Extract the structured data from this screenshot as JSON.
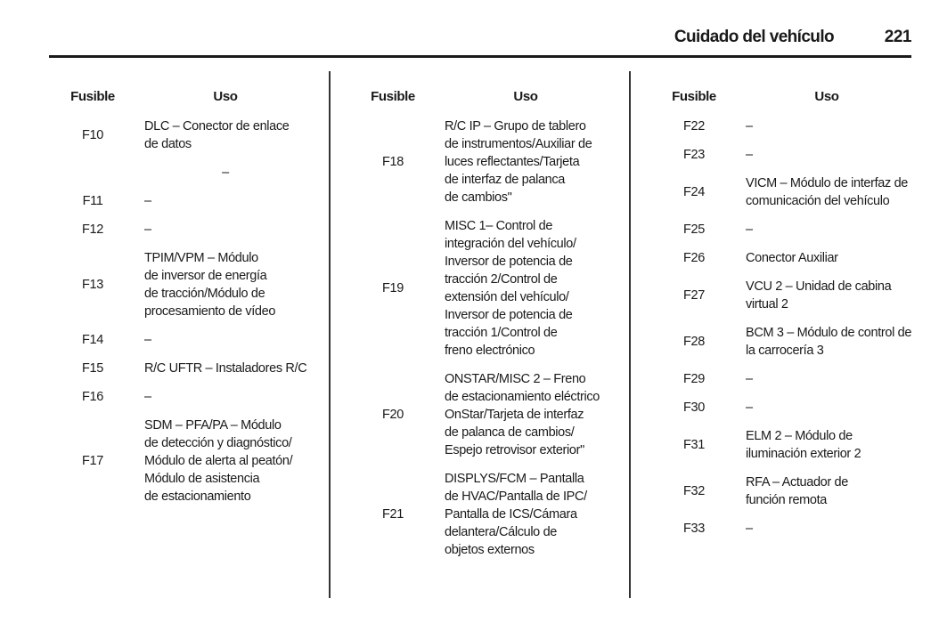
{
  "header": {
    "section_title": "Cuidado del vehículo",
    "page_number": "221"
  },
  "table_header": {
    "fuse": "Fusible",
    "use": "Uso"
  },
  "columns": [
    {
      "rows": [
        {
          "fuse": "F10",
          "use": [
            "DLC – Conector de enlace",
            "de datos"
          ]
        },
        {
          "fuse": "",
          "use": [
            "–"
          ],
          "centered": true
        },
        {
          "fuse": "F11",
          "use": [
            "–"
          ]
        },
        {
          "fuse": "F12",
          "use": [
            "–"
          ]
        },
        {
          "fuse": "F13",
          "use": [
            "TPIM/VPM – Módulo",
            "de inversor de energía",
            "de tracción/Módulo de",
            "procesamiento de vídeo"
          ]
        },
        {
          "fuse": "F14",
          "use": [
            "–"
          ]
        },
        {
          "fuse": "F15",
          "use": [
            "R/C UFTR – Instaladores R/C"
          ]
        },
        {
          "fuse": "F16",
          "use": [
            "–"
          ]
        },
        {
          "fuse": "F17",
          "use": [
            "SDM – PFA/PA – Módulo",
            "de detección y diagnóstico/",
            "Módulo de alerta al peatón/",
            "Módulo de asistencia",
            "de estacionamiento"
          ]
        }
      ]
    },
    {
      "rows": [
        {
          "fuse": "F18",
          "use": [
            "R/C IP – Grupo de tablero",
            "de instrumentos/Auxiliar de",
            "luces reflectantes/Tarjeta",
            "de interfaz de palanca",
            "de cambios\""
          ]
        },
        {
          "fuse": "F19",
          "use": [
            "MISC 1– Control de",
            "integración del vehículo/",
            "Inversor de potencia de",
            "tracción 2/Control de",
            "extensión del vehículo/",
            "Inversor de potencia de",
            "tracción 1/Control de",
            "freno electrónico"
          ]
        },
        {
          "fuse": "F20",
          "use": [
            "ONSTAR/MISC 2 – Freno",
            "de estacionamiento eléctrico",
            "OnStar/Tarjeta de interfaz",
            "de palanca de cambios/",
            "Espejo retrovisor exterior\""
          ]
        },
        {
          "fuse": "F21",
          "use": [
            "DISPLYS/FCM – Pantalla",
            "de HVAC/Pantalla de IPC/",
            "Pantalla de ICS/Cámara",
            "delantera/Cálculo de",
            "objetos externos"
          ]
        }
      ]
    },
    {
      "rows": [
        {
          "fuse": "F22",
          "use": [
            "–"
          ]
        },
        {
          "fuse": "F23",
          "use": [
            "–"
          ]
        },
        {
          "fuse": "F24",
          "use": [
            "VICM – Módulo de interfaz de",
            "comunicación del vehículo"
          ]
        },
        {
          "fuse": "F25",
          "use": [
            "–"
          ]
        },
        {
          "fuse": "F26",
          "use": [
            "Conector Auxiliar"
          ]
        },
        {
          "fuse": "F27",
          "use": [
            "VCU 2 – Unidad de cabina",
            "virtual 2"
          ]
        },
        {
          "fuse": "F28",
          "use": [
            "BCM 3 – Módulo de control de",
            "la carrocería 3"
          ]
        },
        {
          "fuse": "F29",
          "use": [
            "–"
          ]
        },
        {
          "fuse": "F30",
          "use": [
            "–"
          ]
        },
        {
          "fuse": "F31",
          "use": [
            "ELM 2 – Módulo de",
            "iluminación exterior 2"
          ]
        },
        {
          "fuse": "F32",
          "use": [
            "RFA – Actuador de",
            "función remota"
          ]
        },
        {
          "fuse": "F33",
          "use": [
            "–"
          ]
        }
      ]
    }
  ]
}
